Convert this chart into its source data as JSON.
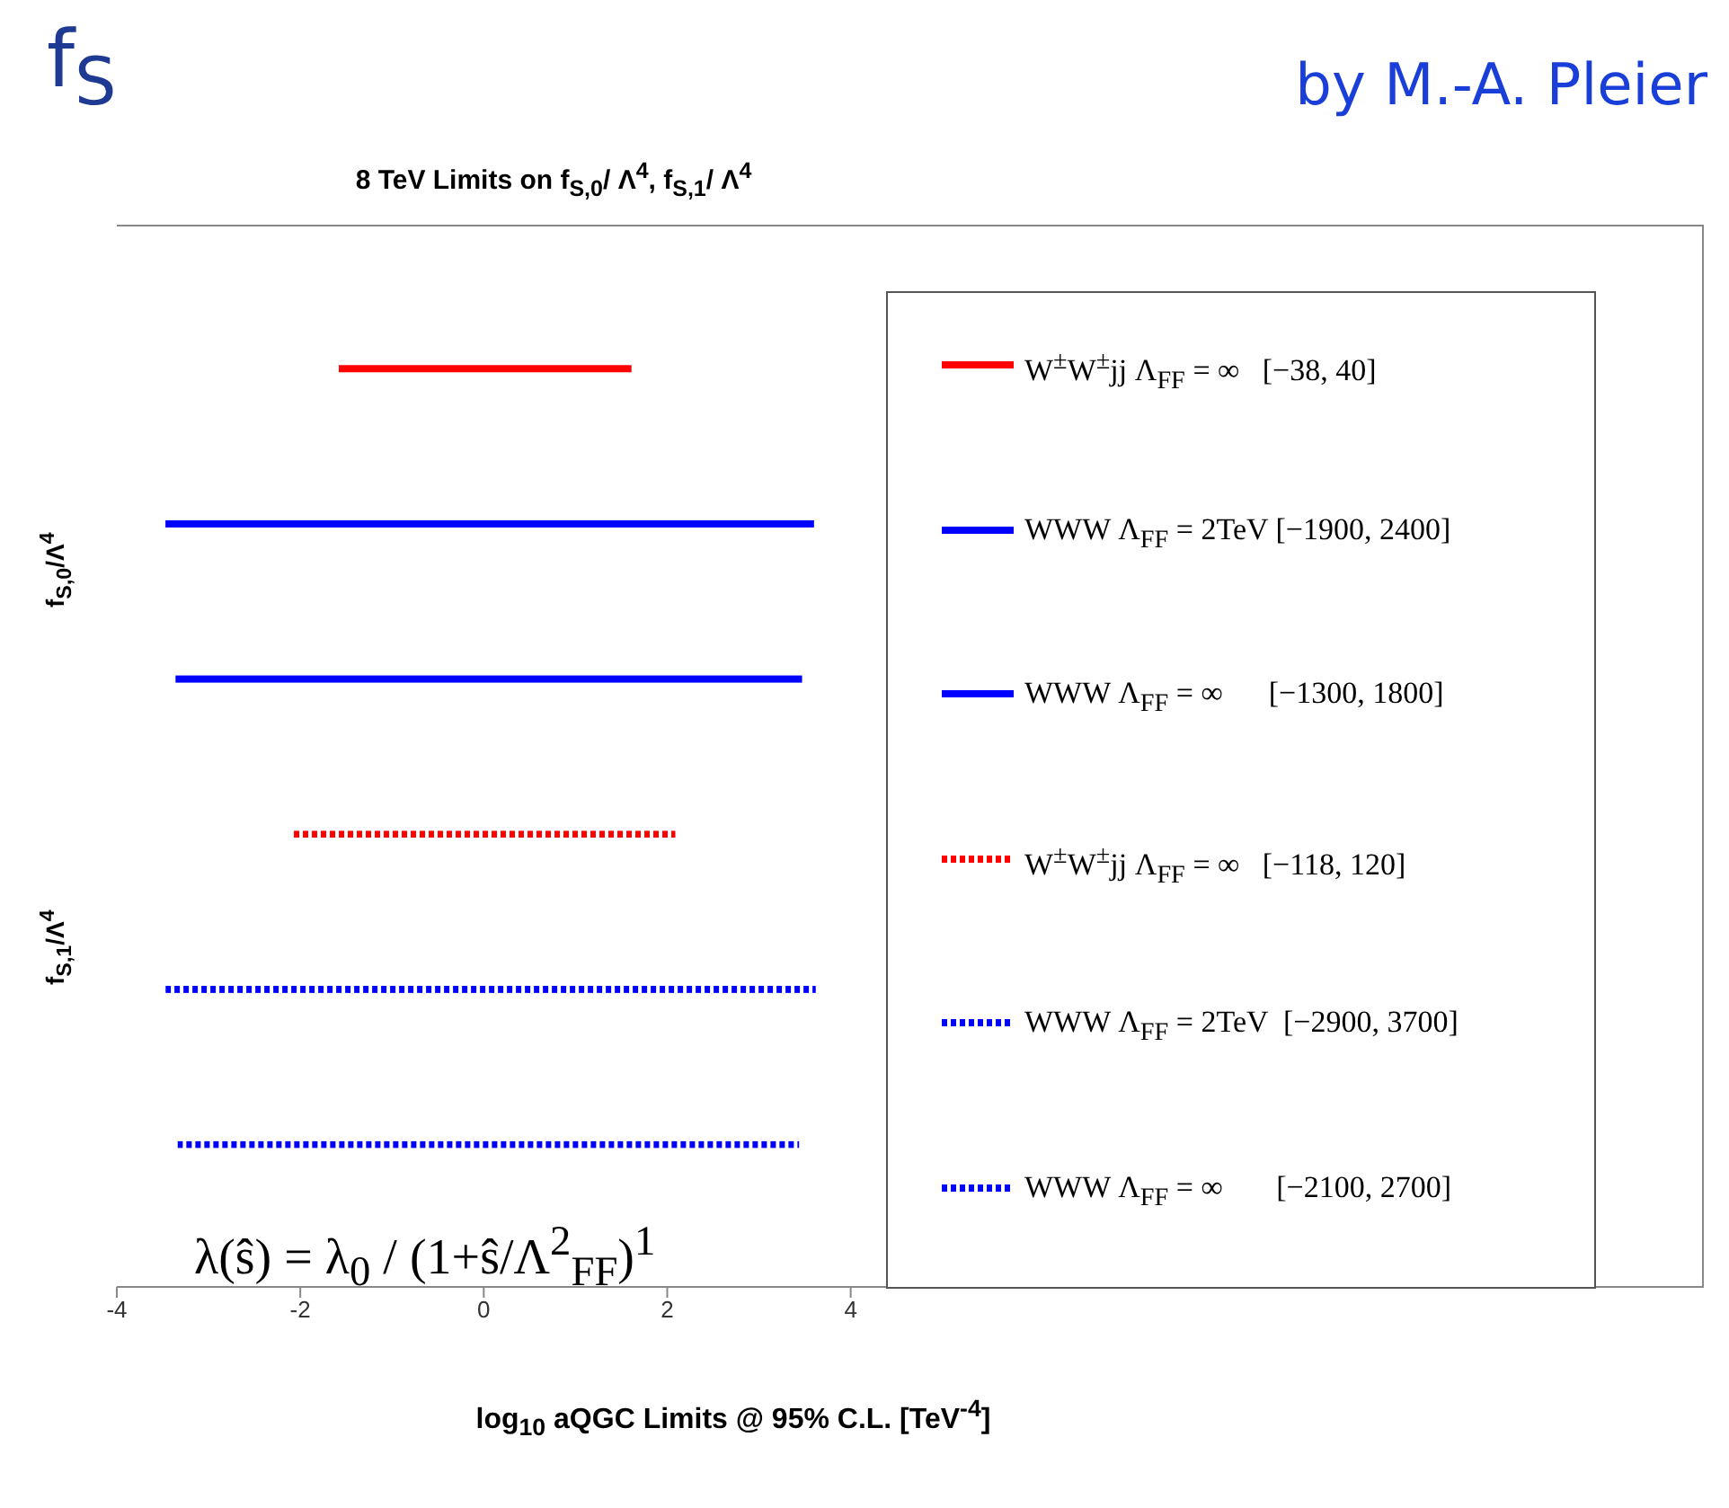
{
  "chart_data": {
    "type": "bar",
    "orientation": "horizontal",
    "title": "8 TeV Limits on f$_{S,0}$/ Λ$^{4}$, f$_{S,1}$/ Λ$^{4}$",
    "xlabel": "log$_{10}$ aQGC Limits @ 95% C.L. [TeV$^{-4}$]",
    "categories": [
      null,
      null,
      null,
      null,
      null,
      null
    ],
    "series": [
      {
        "name": "W$^{±}$W$^{±}$jj Λ$_{FF}$ = ∞   [−38, 40]",
        "color": "#ff0000",
        "line_style": "solid",
        "base": [
          -1.58,
          null,
          null,
          null,
          null,
          null
        ],
        "values": [
          3.19,
          null,
          null,
          null,
          null,
          null
        ]
      },
      {
        "name": "WWW Λ$_{FF}$ = 2TeV [−1900, 2400]",
        "color": "#0000ff",
        "line_style": "solid",
        "base": [
          null,
          -3.47,
          null,
          null,
          null,
          null
        ],
        "values": [
          null,
          7.07,
          null,
          null,
          null,
          null
        ]
      },
      {
        "name": "WWW Λ$_{FF}$ = ∞      [−1300, 1800]",
        "color": "#0000ff",
        "line_style": "solid",
        "base": [
          null,
          null,
          -3.36,
          null,
          null,
          null
        ],
        "values": [
          null,
          null,
          6.83,
          null,
          null,
          null
        ]
      },
      {
        "name": "W$^{±}$W$^{±}$jj Λ$_{FF}$ = ∞   [−118, 120]",
        "color": "#ff0000",
        "line_style": "dotted",
        "base": [
          null,
          null,
          null,
          -2.07,
          null,
          null
        ],
        "values": [
          null,
          null,
          null,
          4.16,
          null,
          null
        ]
      },
      {
        "name": "WWW Λ$_{FF}$ = 2TeV  [−2900, 3700]",
        "color": "#0000ff",
        "line_style": "dotted",
        "base": [
          null,
          null,
          null,
          null,
          -3.47,
          null
        ],
        "values": [
          null,
          null,
          null,
          null,
          7.09,
          null
        ]
      },
      {
        "name": "WWW Λ$_{FF}$ = ∞       [−2100, 2700]",
        "color": "#0000ff",
        "line_style": "dotted",
        "base": [
          null,
          null,
          null,
          null,
          null,
          -3.34
        ],
        "values": [
          null,
          null,
          null,
          null,
          null,
          6.78
        ]
      }
    ],
    "xlim": [
      -4,
      13.3
    ],
    "xticks": [
      -4,
      -2,
      0,
      2,
      4
    ],
    "grid": false,
    "legend": "right",
    "annotations": [
      "f$_{S}$",
      "by M.-A. Pleier",
      "f$_{S,0}$/Λ$^{4}$",
      "f$_{S,1}$/Λ$^{4}$",
      "λ(ŝ) = λ$_{0}$ / (1+ŝ/Λ$^{2}$$_{FF}$)$^{1}$"
    ]
  }
}
